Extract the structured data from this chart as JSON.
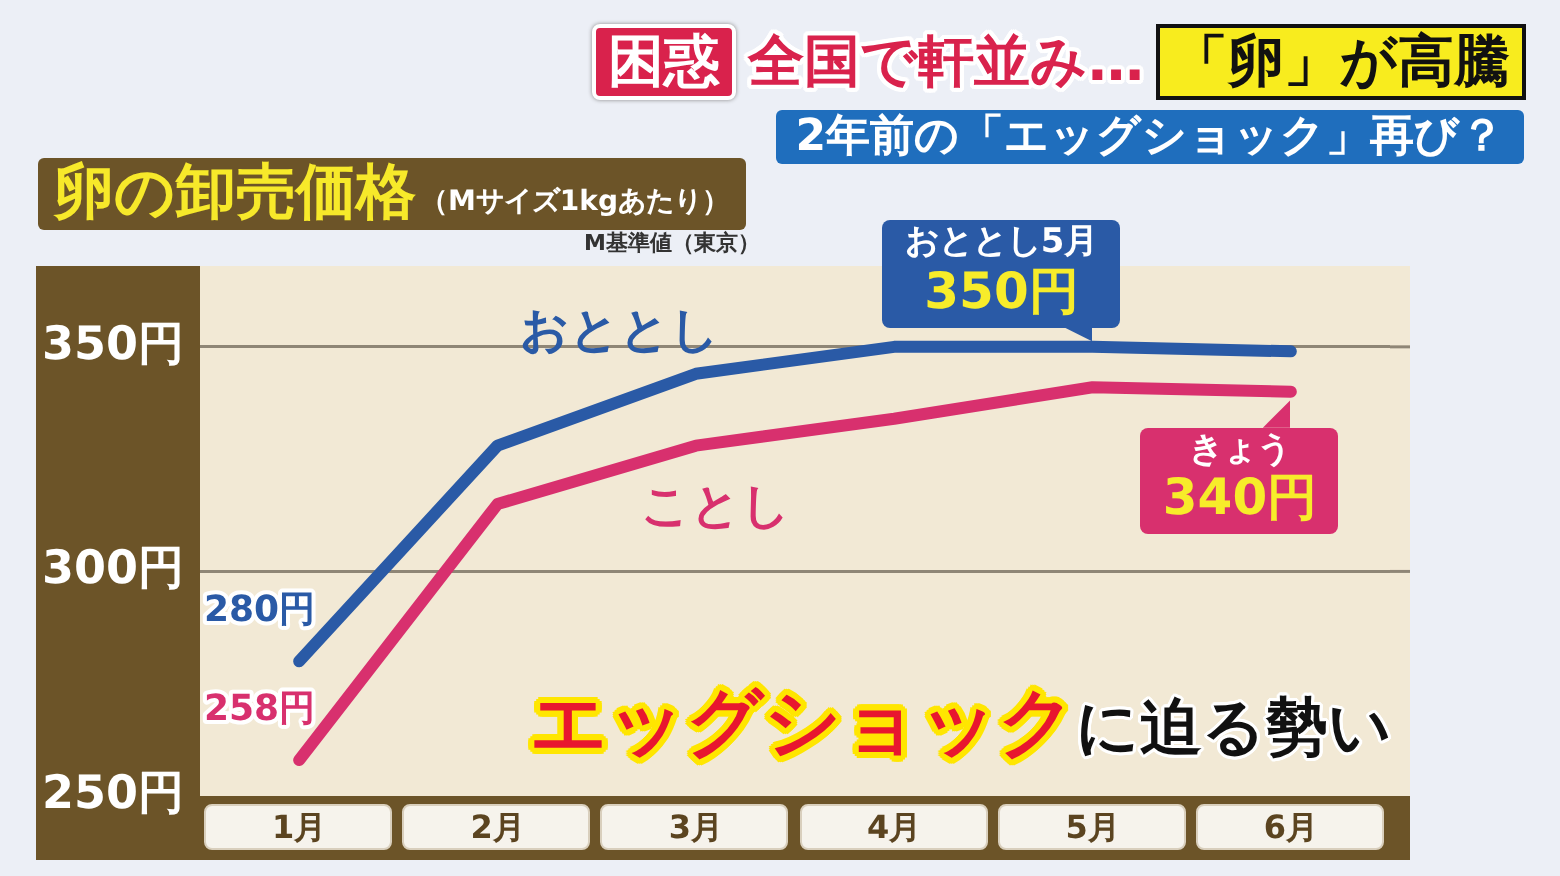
{
  "chart_data": {
    "type": "line",
    "title": "卵の卸売価格",
    "subtitle": "（Mサイズ1kgあたり）",
    "categories": [
      "1月",
      "2月",
      "3月",
      "4月",
      "5月",
      "6月"
    ],
    "series": [
      {
        "name": "おととし",
        "color": "#2a5aa6",
        "values": [
          280,
          328,
          344,
          350,
          350,
          349
        ],
        "value_labels": [
          "280円",
          null,
          null,
          null,
          "350円",
          null
        ]
      },
      {
        "name": "ことし",
        "color": "#d8306e",
        "values": [
          258,
          315,
          328,
          334,
          341,
          340
        ],
        "value_labels": [
          "258円",
          null,
          null,
          null,
          null,
          "340円"
        ]
      }
    ],
    "ylim": [
      250,
      368
    ],
    "yticks": [
      {
        "value": 250,
        "label": "250円"
      },
      {
        "value": 300,
        "label": "300円"
      },
      {
        "value": 350,
        "label": "350円"
      }
    ],
    "grid": "y",
    "legend": false,
    "marker": "none",
    "line_style": "solid",
    "annotations": [
      "困惑",
      "全国で軒並み…",
      "「卵」が高騰",
      "2年前の「エッグショック」再び？",
      "M基準値（東京）",
      "エッグショック",
      "に迫る勢い",
      {
        "text": "おととし5月",
        "x": "5月",
        "y": 350
      },
      {
        "text": "きょう",
        "x": "6月",
        "y": 340
      }
    ]
  }
}
